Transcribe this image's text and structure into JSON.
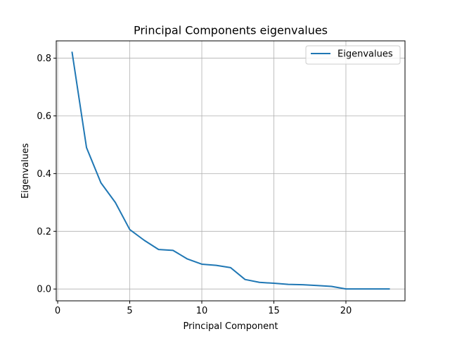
{
  "chart_data": {
    "type": "line",
    "title": "Principal Components eigenvalues",
    "xlabel": "Principal Component",
    "ylabel": "Eigenvalues",
    "xlim": [
      -0.1,
      24.1
    ],
    "ylim": [
      -0.041,
      0.86
    ],
    "xticks": [
      0,
      5,
      10,
      15,
      20
    ],
    "yticks": [
      0.0,
      0.2,
      0.4,
      0.6,
      0.8
    ],
    "xtick_labels": [
      "0",
      "5",
      "10",
      "15",
      "20"
    ],
    "ytick_labels": [
      "0.0",
      "0.2",
      "0.4",
      "0.6",
      "0.8"
    ],
    "grid": true,
    "legend": {
      "position": "top-right"
    },
    "series": [
      {
        "name": "Eigenvalues",
        "color": "#1f77b4",
        "x": [
          1,
          2,
          3,
          4,
          5,
          6,
          7,
          8,
          9,
          10,
          11,
          12,
          13,
          14,
          15,
          16,
          17,
          18,
          19,
          20,
          21,
          22,
          23
        ],
        "y": [
          0.82,
          0.49,
          0.368,
          0.3,
          0.206,
          0.169,
          0.137,
          0.134,
          0.104,
          0.086,
          0.082,
          0.074,
          0.033,
          0.023,
          0.02,
          0.016,
          0.015,
          0.012,
          0.009,
          0.0003,
          0.0002,
          0.0001,
          0.0001
        ]
      }
    ]
  }
}
